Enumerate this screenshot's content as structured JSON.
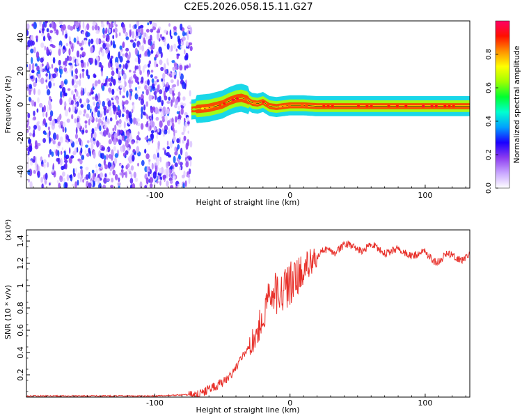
{
  "title": "C2E5.2026.058.15.11.G27",
  "chart_data": [
    {
      "type": "heatmap",
      "xlabel": "Height of straight line (km)",
      "ylabel": "Frequency (Hz)",
      "xlim": [
        -195,
        133
      ],
      "ylim": [
        -50,
        50
      ],
      "xticks": [
        -100,
        0,
        100
      ],
      "xtick_labels": [
        "-100",
        "0",
        "100"
      ],
      "yticks": [
        -40,
        -20,
        0,
        20,
        40
      ],
      "ytick_labels": [
        "-40",
        "-20",
        "0",
        "20",
        "40"
      ],
      "colorbar": {
        "label": "Normalized spectral amplitude",
        "range": [
          0,
          1
        ],
        "ticks": [
          0.0,
          0.2,
          0.4,
          0.6,
          0.8
        ],
        "tick_labels": [
          "0.0",
          "0.2",
          "0.4",
          "0.6",
          "0.8"
        ],
        "colors": [
          "#ffffff",
          "#c9a6ff",
          "#8c3cf0",
          "#1a00ff",
          "#00a0ff",
          "#00ffd0",
          "#00ff30",
          "#a0ff00",
          "#ffff00",
          "#ff9000",
          "#ff1000",
          "#ff0066"
        ]
      },
      "noise_region_x": [
        -195,
        -73
      ],
      "signal_trace": {
        "x": [
          -73,
          -66,
          -60,
          -55,
          -50,
          -45,
          -40,
          -36,
          -32,
          -28,
          -24,
          -20,
          -15,
          -10,
          -5,
          0,
          10,
          20,
          40,
          60,
          80,
          100,
          120,
          133
        ],
        "frequency": [
          -3,
          -2.5,
          -2,
          -1,
          0,
          2,
          3.5,
          4,
          3,
          1,
          0.5,
          1.5,
          -1,
          -1.5,
          -1,
          -0.5,
          -0.5,
          -1,
          -1,
          -1,
          -1,
          -1,
          -1,
          -1
        ],
        "peak_amplitude": [
          0.6,
          0.7,
          0.8,
          0.85,
          0.9,
          0.95,
          0.95,
          0.9,
          0.85,
          0.8,
          0.85,
          0.9,
          0.85,
          0.8,
          0.8,
          0.85,
          0.85,
          0.9,
          0.9,
          0.9,
          0.9,
          0.95,
          0.9,
          0.9
        ]
      }
    },
    {
      "type": "line",
      "xlabel": "Height of straight line (km)",
      "ylabel": "SNR (10 * v/v)",
      "y_multiplier_label": "(x10⁴)",
      "xlim": [
        -195,
        133
      ],
      "ylim": [
        0,
        1.5
      ],
      "xticks": [
        -100,
        0,
        100
      ],
      "xtick_labels": [
        "-100",
        "0",
        "100"
      ],
      "yticks": [
        0.2,
        0.4,
        0.6,
        0.8,
        1.0,
        1.2,
        1.4
      ],
      "ytick_labels": [
        "0.2",
        "0.4",
        "0.6",
        "0.8",
        "1",
        "1.2",
        "1.4"
      ],
      "line_color": "#e8302a",
      "series": [
        {
          "x": [
            -195,
            -150,
            -100,
            -80,
            -70,
            -65,
            -60,
            -55,
            -50,
            -45,
            -40,
            -35,
            -30,
            -25,
            -20,
            -15,
            -10,
            -5,
            0,
            5,
            10,
            15,
            20,
            25,
            30,
            40,
            50,
            60,
            70,
            80,
            90,
            95,
            100,
            105,
            110,
            115,
            120,
            125,
            133
          ],
          "y": [
            0.01,
            0.01,
            0.01,
            0.02,
            0.02,
            0.04,
            0.07,
            0.1,
            0.13,
            0.18,
            0.25,
            0.38,
            0.45,
            0.55,
            0.75,
            0.9,
            0.93,
            0.96,
            1.02,
            1.08,
            1.15,
            1.2,
            1.25,
            1.3,
            1.32,
            1.34,
            1.35,
            1.33,
            1.32,
            1.3,
            1.3,
            1.28,
            1.27,
            1.25,
            1.24,
            1.26,
            1.25,
            1.26,
            1.27
          ]
        }
      ]
    }
  ]
}
